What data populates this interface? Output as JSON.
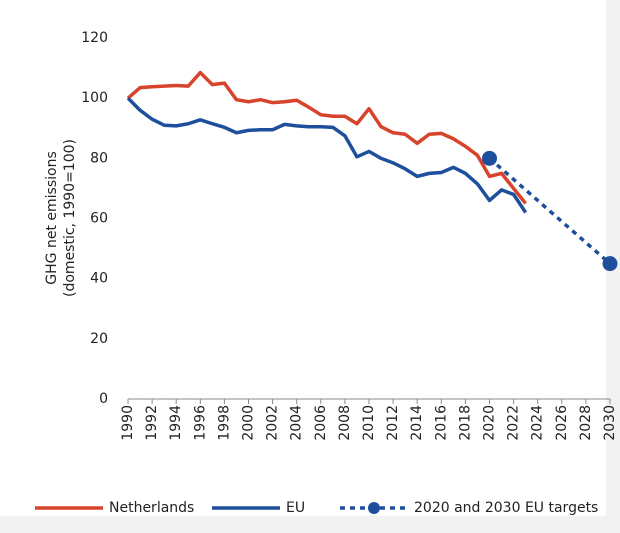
{
  "chart_data": {
    "type": "line",
    "ylabel": [
      "GHG net emissions",
      "(domestic, 1990=100)"
    ],
    "xlim": [
      1990,
      2030
    ],
    "xticks": [
      1990,
      1992,
      1994,
      1996,
      1998,
      2000,
      2002,
      2004,
      2006,
      2008,
      2010,
      2012,
      2014,
      2016,
      2018,
      2020,
      2022,
      2024,
      2026,
      2028,
      2030
    ],
    "ylim": [
      0,
      120
    ],
    "yticks": [
      0,
      20,
      40,
      60,
      80,
      100,
      120
    ],
    "grid": false,
    "legend": "bottom",
    "series": [
      {
        "name": "Netherlands",
        "color": "#d8432b",
        "style": "solid",
        "x": [
          1990,
          1991,
          1992,
          1993,
          1994,
          1995,
          1996,
          1997,
          1998,
          1999,
          2000,
          2001,
          2002,
          2003,
          2004,
          2005,
          2006,
          2007,
          2008,
          2009,
          2010,
          2011,
          2012,
          2013,
          2014,
          2015,
          2016,
          2017,
          2018,
          2019,
          2020,
          2021,
          2022,
          2023
        ],
        "values": [
          100,
          103.5,
          103.8,
          104,
          104.2,
          104,
          108.5,
          104.5,
          105,
          99.5,
          98.8,
          99.5,
          98.5,
          98.8,
          99.3,
          97,
          94.5,
          94,
          94,
          91.5,
          96.5,
          90.5,
          88.5,
          88,
          85,
          88,
          88.3,
          86.5,
          84,
          81,
          74,
          75,
          70,
          65
        ]
      },
      {
        "name": "EU",
        "color": "#1d4f9c",
        "style": "solid",
        "x": [
          1990,
          1991,
          1992,
          1993,
          1994,
          1995,
          1996,
          1997,
          1998,
          1999,
          2000,
          2001,
          2002,
          2003,
          2004,
          2005,
          2006,
          2007,
          2008,
          2009,
          2010,
          2011,
          2012,
          2013,
          2014,
          2015,
          2016,
          2017,
          2018,
          2019,
          2020,
          2021,
          2022,
          2023
        ],
        "values": [
          100,
          96,
          93,
          91,
          90.8,
          91.5,
          92.8,
          91.5,
          90.3,
          88.5,
          89.3,
          89.5,
          89.5,
          91.3,
          90.8,
          90.5,
          90.5,
          90.3,
          87.5,
          80.5,
          82.3,
          80,
          78.5,
          76.5,
          74,
          75,
          75.3,
          77,
          75,
          71.5,
          66,
          69.5,
          68,
          62
        ]
      },
      {
        "name": "2020 and 2030 EU targets",
        "color": "#1d4f9c",
        "style": "dashed",
        "x": [
          2020,
          2030
        ],
        "values": [
          80,
          45
        ]
      }
    ]
  }
}
